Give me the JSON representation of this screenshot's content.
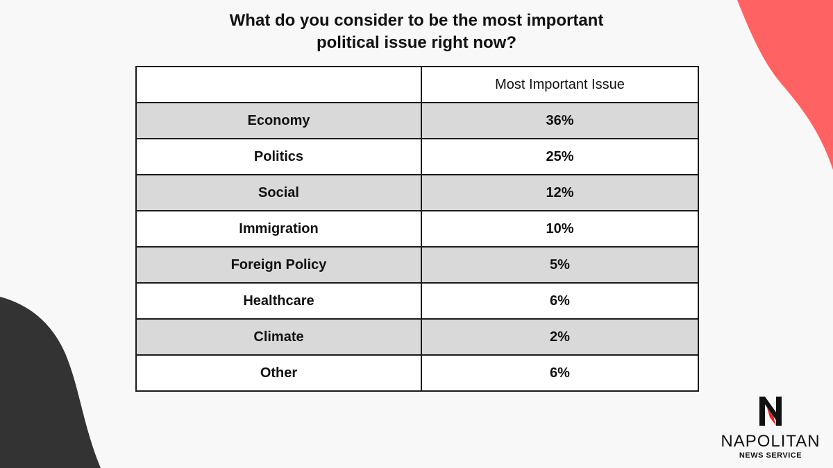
{
  "background": {
    "color": "#f8f8f8",
    "accent_shape_color": "#ff6262",
    "dark_shape_color": "#333333"
  },
  "title": {
    "line1": "What do you consider to be the most important",
    "line2": "political issue right now?"
  },
  "chart_data": {
    "type": "table",
    "columns": [
      "",
      "Most Important Issue"
    ],
    "rows": [
      {
        "issue": "Economy",
        "value": "36%"
      },
      {
        "issue": "Politics",
        "value": "25%"
      },
      {
        "issue": "Social",
        "value": "12%"
      },
      {
        "issue": "Immigration",
        "value": "10%"
      },
      {
        "issue": "Foreign Policy",
        "value": "5%"
      },
      {
        "issue": "Healthcare",
        "value": "6%"
      },
      {
        "issue": "Climate",
        "value": "2%"
      },
      {
        "issue": "Other",
        "value": "6%"
      }
    ]
  },
  "logo": {
    "name": "NAPOLITAN",
    "subtitle": "NEWS SERVICE",
    "accent_color": "#e8232a"
  }
}
